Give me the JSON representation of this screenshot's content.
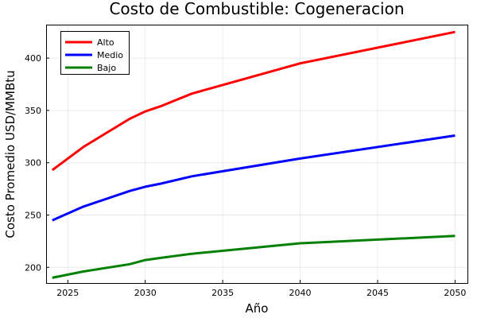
{
  "chart_data": {
    "type": "line",
    "title": "Costo de Combustible: Cogeneracion",
    "xlabel": "Año",
    "ylabel": "Costo Promedio USD/MMBtu",
    "xlim": [
      2023.6,
      2050.8
    ],
    "ylim": [
      185,
      432
    ],
    "xticks": [
      2025,
      2030,
      2035,
      2040,
      2045,
      2050
    ],
    "yticks": [
      200,
      250,
      300,
      350,
      400
    ],
    "grid": true,
    "legend_position": "top-left",
    "series": [
      {
        "name": "Alto",
        "color": "#ff0000",
        "x": [
          2024,
          2026,
          2029,
          2030,
          2031,
          2033,
          2040,
          2050
        ],
        "y": [
          293,
          315,
          342,
          349,
          354,
          366,
          395,
          425
        ]
      },
      {
        "name": "Medio",
        "color": "#0000ff",
        "x": [
          2024,
          2026,
          2029,
          2030,
          2031,
          2033,
          2040,
          2050
        ],
        "y": [
          245,
          258,
          273,
          277,
          280,
          287,
          304,
          326
        ]
      },
      {
        "name": "Bajo",
        "color": "#008000",
        "x": [
          2024,
          2026,
          2029,
          2030,
          2031,
          2033,
          2040,
          2050
        ],
        "y": [
          190,
          196,
          203,
          207,
          209,
          213,
          223,
          230
        ]
      }
    ]
  }
}
